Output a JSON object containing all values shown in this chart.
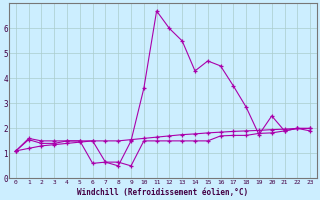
{
  "xlabel": "Windchill (Refroidissement éolien,°C)",
  "bg_color": "#cceeff",
  "grid_color": "#aacccc",
  "line_color": "#aa00aa",
  "spine_color": "#777777",
  "xlim": [
    -0.5,
    23.5
  ],
  "ylim": [
    0,
    7
  ],
  "xticks": [
    0,
    1,
    2,
    3,
    4,
    5,
    6,
    7,
    8,
    9,
    10,
    11,
    12,
    13,
    14,
    15,
    16,
    17,
    18,
    19,
    20,
    21,
    22,
    23
  ],
  "yticks": [
    0,
    1,
    2,
    3,
    4,
    5,
    6
  ],
  "x": [
    0,
    1,
    2,
    3,
    4,
    5,
    6,
    7,
    8,
    9,
    10,
    11,
    12,
    13,
    14,
    15,
    16,
    17,
    18,
    19,
    20,
    21,
    22,
    23
  ],
  "line1": [
    1.1,
    1.6,
    1.5,
    1.5,
    1.5,
    1.5,
    1.5,
    0.65,
    0.5,
    1.5,
    3.6,
    6.7,
    6.0,
    5.5,
    4.3,
    4.7,
    4.5,
    3.7,
    2.85,
    1.75,
    2.5,
    1.9,
    2.0,
    1.9
  ],
  "line2": [
    1.1,
    1.55,
    1.4,
    1.4,
    1.5,
    1.5,
    0.6,
    0.65,
    0.65,
    0.5,
    1.5,
    1.5,
    1.5,
    1.5,
    1.5,
    1.5,
    1.7,
    1.72,
    1.72,
    1.8,
    1.82,
    1.9,
    2.0,
    2.0
  ],
  "line3": [
    1.1,
    1.2,
    1.3,
    1.35,
    1.4,
    1.45,
    1.5,
    1.5,
    1.5,
    1.55,
    1.6,
    1.65,
    1.7,
    1.75,
    1.78,
    1.82,
    1.85,
    1.88,
    1.9,
    1.92,
    1.95,
    1.97,
    2.0,
    2.0
  ]
}
